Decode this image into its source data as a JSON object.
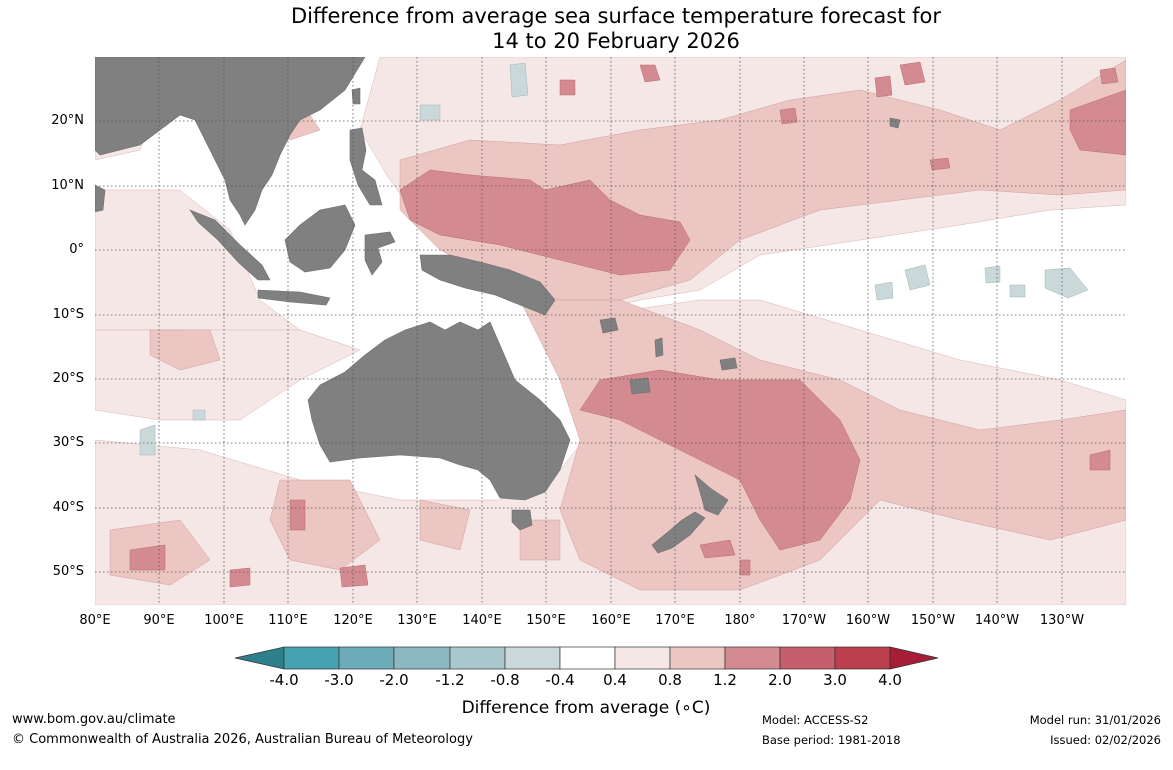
{
  "title": {
    "line1": "Difference from average sea surface temperature forecast for",
    "line2": "14 to 20 February 2026"
  },
  "map": {
    "latitude_labels": [
      "20°N",
      "10°N",
      "0°",
      "10°S",
      "20°S",
      "30°S",
      "40°S",
      "50°S"
    ],
    "longitude_labels": [
      "80°E",
      "90°E",
      "100°E",
      "110°E",
      "120°E",
      "130°E",
      "140°E",
      "150°E",
      "160°E",
      "170°E",
      "180°",
      "170°W",
      "160°W",
      "150°W",
      "140°W",
      "130°W"
    ],
    "colors": {
      "land": "#808080",
      "ocean": "#ffffff",
      "grid": "#555555"
    }
  },
  "colorbar": {
    "title": "Difference from average (∘C)",
    "tick_labels": [
      "-4.0",
      "-3.0",
      "-2.0",
      "-1.2",
      "-0.8",
      "-0.4",
      "0.4",
      "0.8",
      "1.2",
      "2.0",
      "3.0",
      "4.0"
    ],
    "colors": [
      "#2e7f8c",
      "#46a1b0",
      "#6bacb8",
      "#8cb9c1",
      "#a9c7cc",
      "#cad8da",
      "#ffffff",
      "#f5e7e6",
      "#ebc6c3",
      "#d48a91",
      "#c55f6b",
      "#bb3f4d",
      "#a51d36"
    ]
  },
  "footer": {
    "website": "www.bom.gov.au/climate",
    "copyright": "© Commonwealth of Australia 2026, Australian Bureau of Meteorology",
    "model": "Model: ACCESS-S2",
    "base_period": "Base period: 1981-2018",
    "model_run": "Model run: 31/01/2026",
    "issued": "Issued: 02/02/2026"
  }
}
